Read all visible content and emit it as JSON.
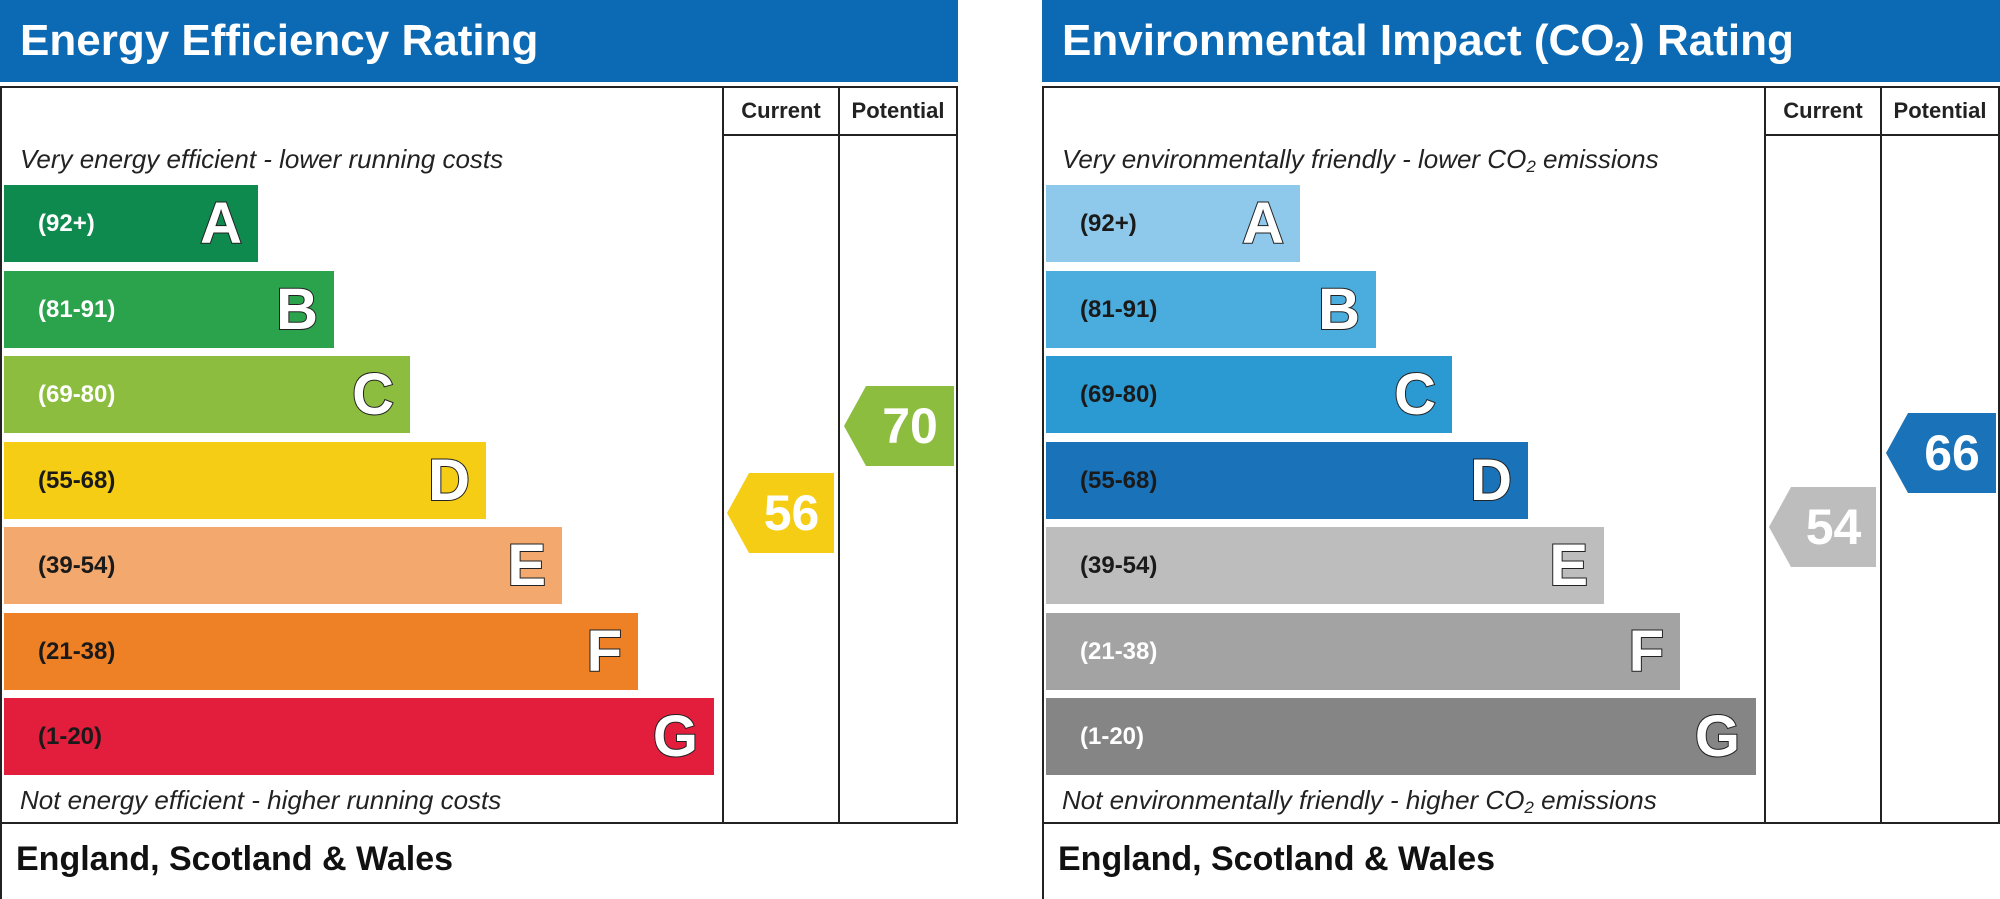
{
  "chart_data": [
    {
      "type": "bar",
      "title": "Energy Efficiency Rating",
      "columns": [
        "Current",
        "Potential"
      ],
      "caption_top": "Very energy efficient - lower running costs",
      "caption_bottom": "Not energy efficient - higher running costs",
      "footer": "England, Scotland & Wales",
      "categories": [
        "A",
        "B",
        "C",
        "D",
        "E",
        "F",
        "G"
      ],
      "ranges": [
        "(92+)",
        "(81-91)",
        "(69-80)",
        "(55-68)",
        "(39-54)",
        "(21-38)",
        "(1-20)"
      ],
      "colors": [
        "#0f8a4e",
        "#2ba24c",
        "#8cbd3f",
        "#f5cd14",
        "#f3a96d",
        "#ee8026",
        "#e31e3c"
      ],
      "range_text_color": [
        "white",
        "white",
        "white",
        "black",
        "black",
        "black",
        "black"
      ],
      "current": {
        "value": 56,
        "band": "D",
        "color": "#f5cd14"
      },
      "potential": {
        "value": 70,
        "band": "C",
        "color": "#8cbd3f"
      }
    },
    {
      "type": "bar",
      "title_parts": [
        "Environmental Impact (CO",
        "2",
        ") Rating"
      ],
      "columns": [
        "Current",
        "Potential"
      ],
      "caption_top_parts": [
        "Very environmentally friendly - lower CO",
        "2",
        " emissions"
      ],
      "caption_bottom_parts": [
        "Not environmentally friendly - higher CO",
        "2",
        " emissions"
      ],
      "footer": "England, Scotland & Wales",
      "categories": [
        "A",
        "B",
        "C",
        "D",
        "E",
        "F",
        "G"
      ],
      "ranges": [
        "(92+)",
        "(81-91)",
        "(69-80)",
        "(55-68)",
        "(39-54)",
        "(21-38)",
        "(1-20)"
      ],
      "colors": [
        "#8ec9ec",
        "#4badde",
        "#2b9ad2",
        "#1a72b9",
        "#bdbdbd",
        "#a3a3a3",
        "#858585"
      ],
      "range_text_color": [
        "black",
        "black",
        "black",
        "black",
        "black",
        "white",
        "white"
      ],
      "current": {
        "value": 54,
        "band": "E",
        "color": "#bdbdbd"
      },
      "potential": {
        "value": 66,
        "band": "D",
        "color": "#1a72b9"
      }
    }
  ]
}
